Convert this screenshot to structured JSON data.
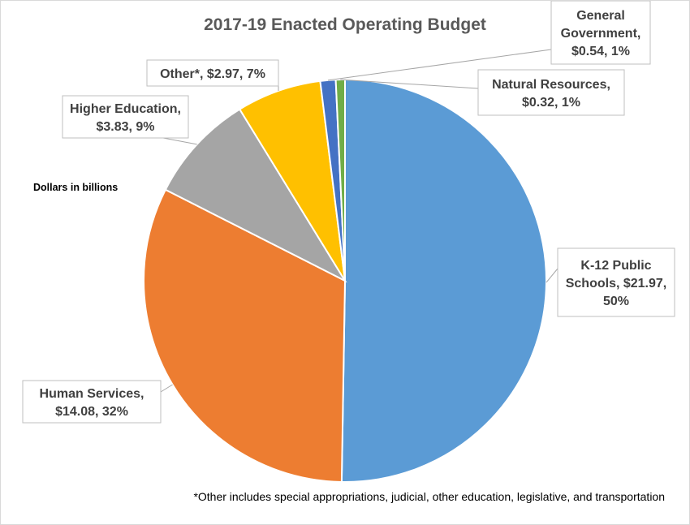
{
  "chart_data": {
    "type": "pie",
    "title": "2017-19 Enacted Operating Budget",
    "units_note": "Dollars in billions",
    "footnote": "*Other includes special appropriations, judicial, other education, legislative, and transportation",
    "slices": [
      {
        "key": "k12",
        "label_lines": [
          "K-12 Public",
          "Schools, $21.97,",
          "50%"
        ],
        "value": 21.97,
        "percent": 50,
        "color": "#5b9bd5"
      },
      {
        "key": "human",
        "label_lines": [
          "Human Services,",
          "$14.08, 32%"
        ],
        "value": 14.08,
        "percent": 32,
        "color": "#ed7d31"
      },
      {
        "key": "higher",
        "label_lines": [
          "Higher Education,",
          "$3.83, 9%"
        ],
        "value": 3.83,
        "percent": 9,
        "color": "#a5a5a5"
      },
      {
        "key": "other",
        "label_lines": [
          "Other*, $2.97, 7%"
        ],
        "value": 2.97,
        "percent": 7,
        "color": "#ffc000"
      },
      {
        "key": "general",
        "label_lines": [
          "General",
          "Government,",
          "$0.54, 1%"
        ],
        "value": 0.54,
        "percent": 1,
        "color": "#4472c4"
      },
      {
        "key": "natural",
        "label_lines": [
          "Natural Resources,",
          "$0.32, 1%"
        ],
        "value": 0.32,
        "percent": 1,
        "color": "#70ad47"
      }
    ]
  }
}
